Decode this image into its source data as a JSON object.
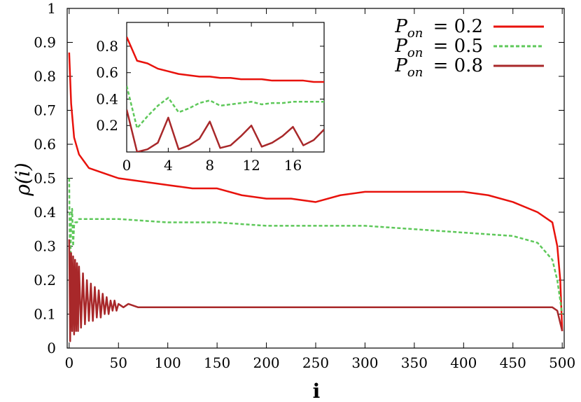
{
  "chart_data": [
    {
      "type": "line",
      "xlabel": "i",
      "ylabel": "ρ(i)",
      "xlim": [
        -2,
        502
      ],
      "ylim": [
        0,
        1
      ],
      "xticks": [
        0,
        50,
        100,
        150,
        200,
        250,
        300,
        350,
        400,
        450,
        500
      ],
      "yticks": [
        0,
        0.1,
        0.2,
        0.3,
        0.4,
        0.5,
        0.6,
        0.7,
        0.8,
        0.9,
        1
      ],
      "xtick_labels": [
        "0",
        "50",
        "100",
        "150",
        "200",
        "250",
        "300",
        "350",
        "400",
        "450",
        "500"
      ],
      "ytick_labels": [
        "0",
        "0.1",
        "0.2",
        "0.3",
        "0.4",
        "0.5",
        "0.6",
        "0.7",
        "0.8",
        "0.9",
        "1"
      ],
      "legend_position": "top-right",
      "grid": false,
      "series": [
        {
          "name": "P_on = 0.2",
          "color": "#e8120c",
          "dash": "solid",
          "points": [
            [
              0,
              0.87
            ],
            [
              2,
              0.72
            ],
            [
              5,
              0.62
            ],
            [
              10,
              0.57
            ],
            [
              15,
              0.55
            ],
            [
              20,
              0.53
            ],
            [
              30,
              0.52
            ],
            [
              40,
              0.51
            ],
            [
              50,
              0.5
            ],
            [
              75,
              0.49
            ],
            [
              100,
              0.48
            ],
            [
              125,
              0.47
            ],
            [
              150,
              0.47
            ],
            [
              175,
              0.45
            ],
            [
              200,
              0.44
            ],
            [
              225,
              0.44
            ],
            [
              250,
              0.43
            ],
            [
              275,
              0.45
            ],
            [
              300,
              0.46
            ],
            [
              325,
              0.46
            ],
            [
              350,
              0.46
            ],
            [
              375,
              0.46
            ],
            [
              400,
              0.46
            ],
            [
              425,
              0.45
            ],
            [
              450,
              0.43
            ],
            [
              475,
              0.4
            ],
            [
              490,
              0.37
            ],
            [
              495,
              0.3
            ],
            [
              498,
              0.2
            ],
            [
              500,
              0.05
            ]
          ]
        },
        {
          "name": "P_on = 0.5",
          "color": "#5ec85a",
          "dash": "dashed",
          "points": [
            [
              0,
              0.5
            ],
            [
              1,
              0.19
            ],
            [
              2,
              0.38
            ],
            [
              3,
              0.41
            ],
            [
              4,
              0.3
            ],
            [
              5,
              0.36
            ],
            [
              6,
              0.37
            ],
            [
              8,
              0.37
            ],
            [
              10,
              0.38
            ],
            [
              25,
              0.38
            ],
            [
              50,
              0.38
            ],
            [
              100,
              0.37
            ],
            [
              150,
              0.37
            ],
            [
              200,
              0.36
            ],
            [
              250,
              0.36
            ],
            [
              300,
              0.36
            ],
            [
              350,
              0.35
            ],
            [
              400,
              0.34
            ],
            [
              450,
              0.33
            ],
            [
              475,
              0.31
            ],
            [
              490,
              0.26
            ],
            [
              495,
              0.2
            ],
            [
              500,
              0.1
            ]
          ]
        },
        {
          "name": "P_on = 0.8",
          "color": "#a8282a",
          "dash": "solid",
          "points": [
            [
              0,
              0.32
            ],
            [
              1,
              0.02
            ],
            [
              2,
              0.28
            ],
            [
              3,
              0.05
            ],
            [
              4,
              0.27
            ],
            [
              5,
              0.04
            ],
            [
              6,
              0.26
            ],
            [
              7,
              0.05
            ],
            [
              8,
              0.25
            ],
            [
              9,
              0.05
            ],
            [
              10,
              0.24
            ],
            [
              12,
              0.06
            ],
            [
              14,
              0.22
            ],
            [
              16,
              0.07
            ],
            [
              18,
              0.2
            ],
            [
              20,
              0.08
            ],
            [
              22,
              0.19
            ],
            [
              24,
              0.08
            ],
            [
              26,
              0.18
            ],
            [
              28,
              0.09
            ],
            [
              30,
              0.17
            ],
            [
              32,
              0.09
            ],
            [
              34,
              0.16
            ],
            [
              36,
              0.1
            ],
            [
              38,
              0.15
            ],
            [
              40,
              0.1
            ],
            [
              42,
              0.14
            ],
            [
              44,
              0.11
            ],
            [
              46,
              0.14
            ],
            [
              48,
              0.11
            ],
            [
              50,
              0.13
            ],
            [
              55,
              0.12
            ],
            [
              60,
              0.13
            ],
            [
              70,
              0.12
            ],
            [
              80,
              0.12
            ],
            [
              100,
              0.12
            ],
            [
              150,
              0.12
            ],
            [
              200,
              0.12
            ],
            [
              250,
              0.12
            ],
            [
              300,
              0.12
            ],
            [
              350,
              0.12
            ],
            [
              400,
              0.12
            ],
            [
              450,
              0.12
            ],
            [
              480,
              0.12
            ],
            [
              490,
              0.12
            ],
            [
              495,
              0.11
            ],
            [
              500,
              0.05
            ]
          ]
        }
      ]
    },
    {
      "type": "line",
      "xlim": [
        0,
        19
      ],
      "ylim": [
        0,
        0.98
      ],
      "xticks": [
        0,
        4,
        8,
        12,
        16
      ],
      "yticks": [
        0.2,
        0.4,
        0.6,
        0.8
      ],
      "xtick_labels": [
        "0",
        "4",
        "8",
        "12",
        "16"
      ],
      "ytick_labels": [
        "0.2",
        "0.4",
        "0.6",
        "0.8"
      ],
      "series": [
        {
          "name": "P_on = 0.2",
          "color": "#e8120c",
          "dash": "solid",
          "points": [
            [
              0,
              0.87
            ],
            [
              1,
              0.69
            ],
            [
              2,
              0.67
            ],
            [
              3,
              0.63
            ],
            [
              4,
              0.61
            ],
            [
              5,
              0.59
            ],
            [
              6,
              0.58
            ],
            [
              7,
              0.57
            ],
            [
              8,
              0.57
            ],
            [
              9,
              0.56
            ],
            [
              10,
              0.56
            ],
            [
              11,
              0.55
            ],
            [
              12,
              0.55
            ],
            [
              13,
              0.55
            ],
            [
              14,
              0.54
            ],
            [
              15,
              0.54
            ],
            [
              16,
              0.54
            ],
            [
              17,
              0.54
            ],
            [
              18,
              0.53
            ],
            [
              19,
              0.53
            ]
          ]
        },
        {
          "name": "P_on = 0.5",
          "color": "#5ec85a",
          "dash": "dashed",
          "points": [
            [
              0,
              0.5
            ],
            [
              1,
              0.18
            ],
            [
              2,
              0.27
            ],
            [
              3,
              0.35
            ],
            [
              4,
              0.41
            ],
            [
              5,
              0.3
            ],
            [
              6,
              0.33
            ],
            [
              7,
              0.37
            ],
            [
              8,
              0.39
            ],
            [
              9,
              0.35
            ],
            [
              10,
              0.36
            ],
            [
              11,
              0.37
            ],
            [
              12,
              0.38
            ],
            [
              13,
              0.36
            ],
            [
              14,
              0.37
            ],
            [
              15,
              0.37
            ],
            [
              16,
              0.38
            ],
            [
              17,
              0.38
            ],
            [
              18,
              0.38
            ],
            [
              19,
              0.38
            ]
          ]
        },
        {
          "name": "P_on = 0.8",
          "color": "#a8282a",
          "dash": "solid",
          "points": [
            [
              0,
              0.32
            ],
            [
              1,
              0.0
            ],
            [
              2,
              0.02
            ],
            [
              3,
              0.07
            ],
            [
              4,
              0.26
            ],
            [
              5,
              0.02
            ],
            [
              6,
              0.05
            ],
            [
              7,
              0.1
            ],
            [
              8,
              0.23
            ],
            [
              9,
              0.03
            ],
            [
              10,
              0.05
            ],
            [
              11,
              0.12
            ],
            [
              12,
              0.2
            ],
            [
              13,
              0.04
            ],
            [
              14,
              0.07
            ],
            [
              15,
              0.12
            ],
            [
              16,
              0.19
            ],
            [
              17,
              0.05
            ],
            [
              18,
              0.09
            ],
            [
              19,
              0.17
            ]
          ]
        }
      ]
    }
  ],
  "legend": {
    "entries": [
      {
        "var": "P",
        "sub": "on",
        "value": "= 0.2"
      },
      {
        "var": "P",
        "sub": "on",
        "value": "= 0.5"
      },
      {
        "var": "P",
        "sub": "on",
        "value": "= 0.8"
      }
    ]
  }
}
